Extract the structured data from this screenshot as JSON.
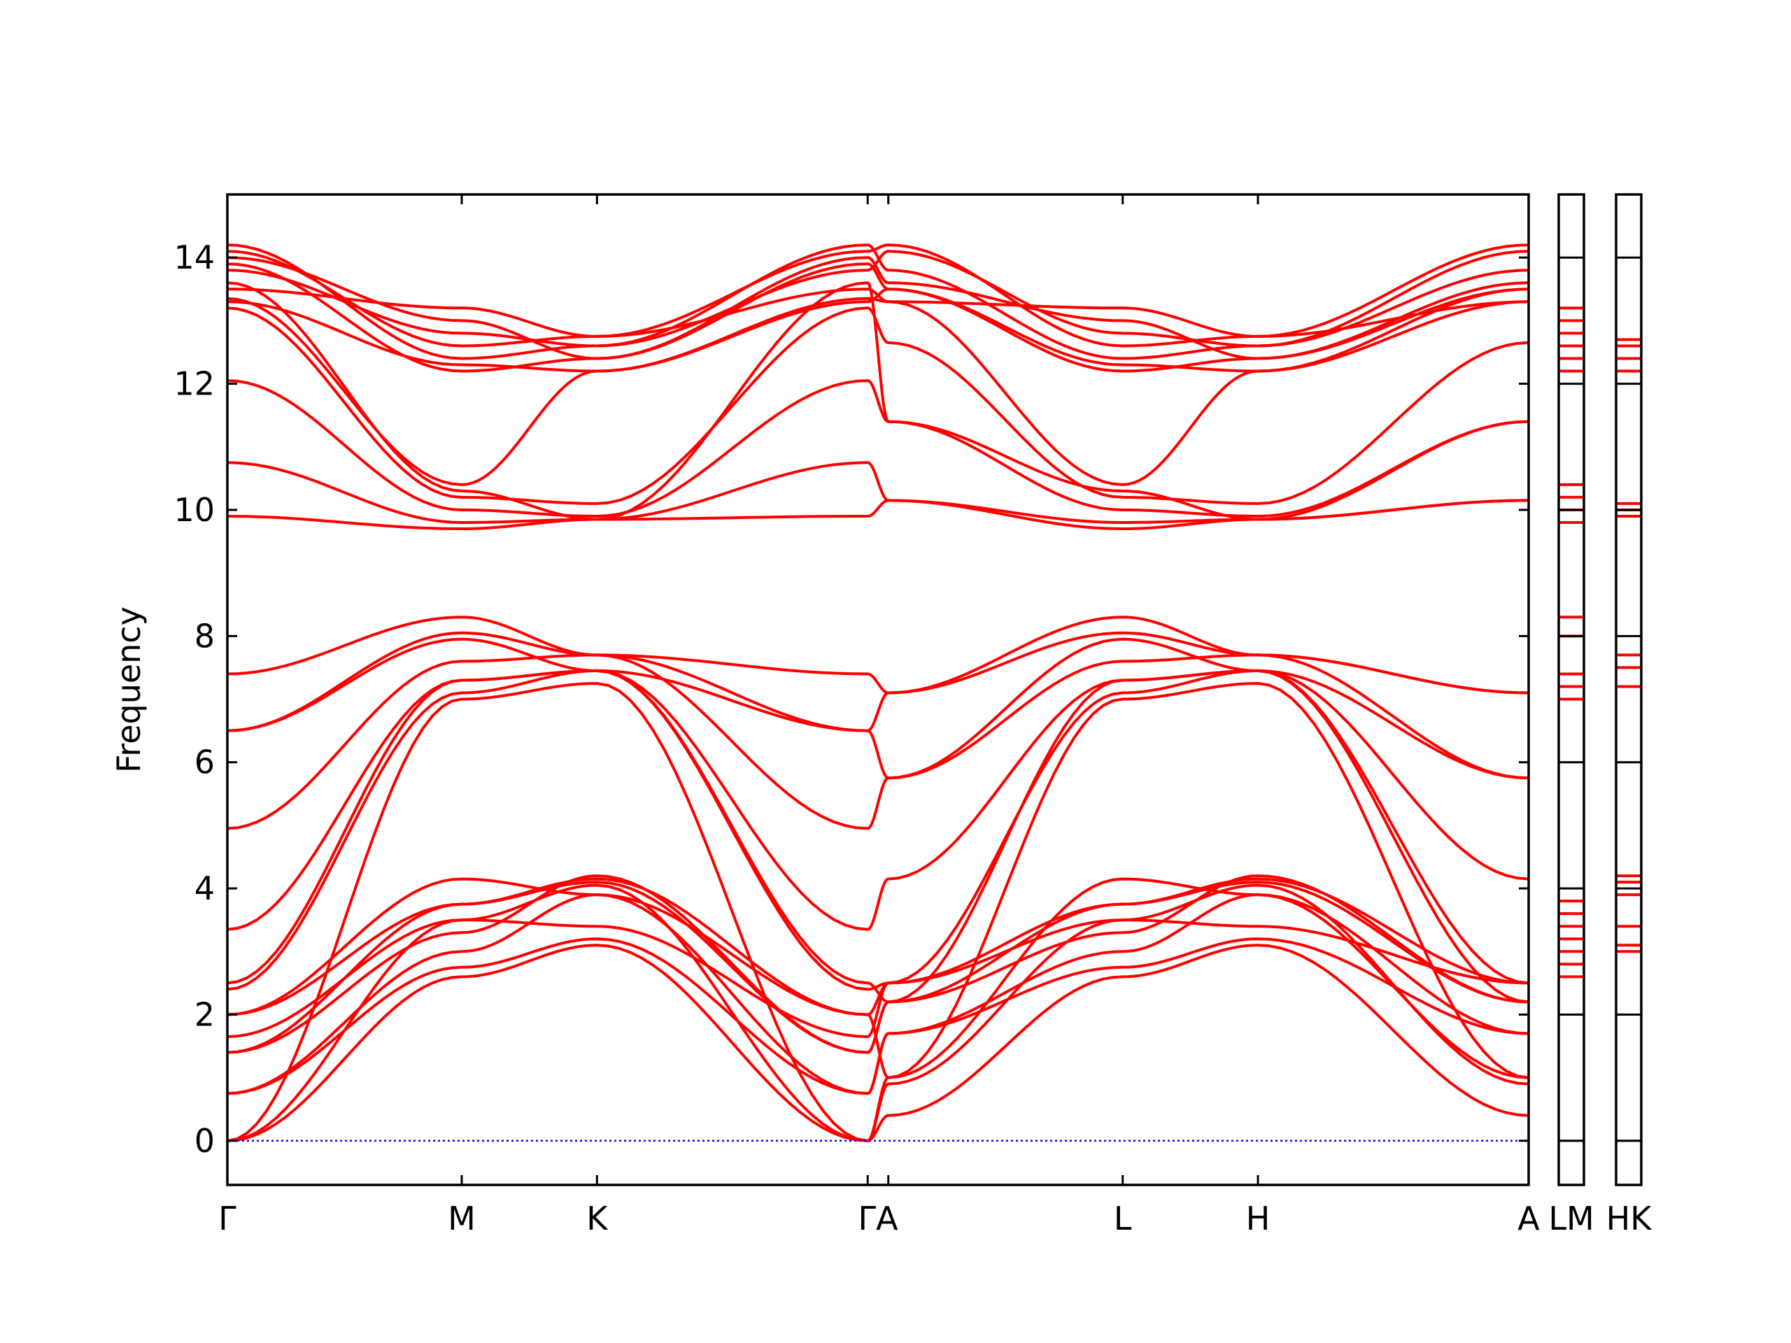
{
  "chart_data": {
    "type": "line",
    "title": "",
    "xlabel": "",
    "ylabel": "Frequency",
    "ylim": [
      -0.7,
      15.0
    ],
    "yticks": [
      0,
      2,
      4,
      6,
      8,
      10,
      12,
      14
    ],
    "ytick_labels": [
      "0",
      "2",
      "4",
      "6",
      "8",
      "10",
      "12",
      "14"
    ],
    "grid": false,
    "line_color": "#ff0000",
    "zero_line_color": "#0000ff",
    "kpath_points": [
      {
        "label": "Γ",
        "x": 0.0
      },
      {
        "label": "M",
        "x": 1.0
      },
      {
        "label": "K",
        "x": 1.577
      },
      {
        "label": "Γ",
        "x": 2.732
      },
      {
        "label": "A",
        "x": 2.82
      },
      {
        "label": "L",
        "x": 3.82
      },
      {
        "label": "H",
        "x": 4.397
      },
      {
        "label": "A",
        "x": 5.552
      }
    ],
    "kpath_tick_labels": [
      "Γ",
      "M",
      "K",
      "ΓA",
      "L",
      "H",
      "A"
    ],
    "side_panels": [
      {
        "label": "LM",
        "frequencies": [
          12.2,
          12.4,
          12.6,
          12.8,
          13.0,
          13.2,
          9.8,
          10.0,
          10.2,
          10.4,
          7.0,
          7.2,
          7.4,
          8.0,
          8.3,
          2.6,
          2.8,
          3.0,
          3.2,
          3.4,
          3.6,
          3.8
        ]
      },
      {
        "label": "HK",
        "frequencies": [
          12.2,
          12.4,
          12.6,
          12.7,
          9.9,
          10.0,
          10.1,
          7.2,
          7.5,
          7.7,
          3.0,
          3.1,
          3.4,
          3.9,
          4.1,
          4.2
        ]
      }
    ],
    "bands_summary": {
      "at_Gamma": [
        0,
        0,
        0,
        0.75,
        0.75,
        1.4,
        1.4,
        1.65,
        2.0,
        2.0,
        2.4,
        2.5,
        3.35,
        4.95,
        6.5,
        7.4,
        9.9,
        10.75,
        12.05,
        13.2,
        13.35,
        13.6,
        13.9,
        14.2
      ],
      "at_A": [
        0.4,
        0.9,
        1.0,
        1.7,
        2.2,
        2.5,
        4.15,
        5.75,
        7.1,
        10.15,
        11.4,
        12.65,
        13.3,
        13.5,
        13.8,
        14.2
      ],
      "at_M": [
        2.6,
        2.75,
        3.0,
        3.3,
        3.5,
        3.75,
        7.0,
        7.1,
        7.3,
        7.6,
        7.95,
        8.3,
        9.7,
        9.8,
        10.0,
        10.2,
        10.4,
        12.2,
        12.4,
        12.6,
        12.8,
        13.0,
        13.2
      ],
      "at_K": [
        3.1,
        3.2,
        3.9,
        4.05,
        4.2,
        7.25,
        7.45,
        7.7,
        9.85,
        10.1,
        12.2,
        12.4,
        12.6,
        12.75
      ]
    }
  }
}
